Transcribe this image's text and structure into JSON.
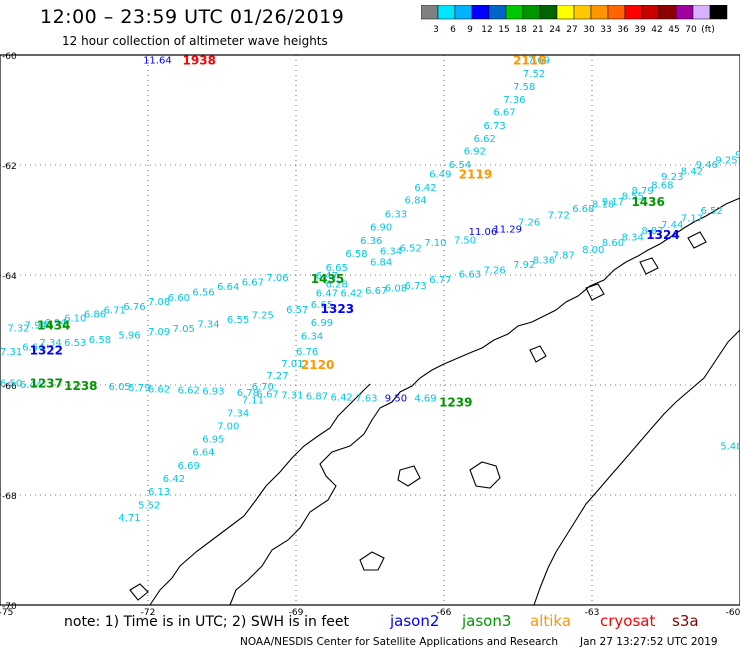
{
  "header": {
    "title": "12:00 – 23:59 UTC 01/26/2019",
    "subtitle": "12 hour collection of altimeter wave heights"
  },
  "scale": {
    "colors": [
      "#808080",
      "#00e5ff",
      "#00b2ff",
      "#0000ff",
      "#0064c8",
      "#00c800",
      "#009600",
      "#006400",
      "#ffff00",
      "#ffc800",
      "#ff9600",
      "#ff6400",
      "#ff0000",
      "#c80000",
      "#8b0000",
      "#a000a0",
      "#d8b2ff",
      "#000000"
    ],
    "labels": [
      "3",
      "6",
      "9",
      "12",
      "15",
      "18",
      "21",
      "24",
      "27",
      "30",
      "33",
      "36",
      "39",
      "42",
      "45",
      "70",
      "(ft)"
    ]
  },
  "axes": {
    "lat_labels": [
      "-60",
      "-62",
      "-64",
      "-66",
      "-68",
      "-70"
    ],
    "lon_labels": [
      "-75",
      "-72",
      "-69",
      "-66",
      "-63",
      "-60"
    ]
  },
  "legend": {
    "note": "note:  1) Time is in UTC; 2) SWH is in feet",
    "satellites": [
      {
        "name": "jason2",
        "color": "#0000ff"
      },
      {
        "name": "jason3",
        "color": "#009600"
      },
      {
        "name": "altika",
        "color": "#ff9600"
      },
      {
        "name": "cryosat",
        "color": "#ff0000"
      },
      {
        "name": "s3a",
        "color": "#8b0000"
      }
    ],
    "credit": "NOAA/NESDIS Center for Satellite Applications and Research",
    "timestamp": "Jan 27 13:27:52 UTC 2019"
  },
  "colors": {
    "cyan": "#00c8e6",
    "jason2": "#0000ff",
    "jason3": "#009600",
    "altika": "#ff9600",
    "cryosat": "#ff0000"
  },
  "time_labels": [
    {
      "text": "1938",
      "sat": "cryosat",
      "lon": -71.3,
      "lat": -60.08
    },
    {
      "text": "2118",
      "sat": "altika",
      "lon": -64.6,
      "lat": -60.08
    },
    {
      "text": "2119",
      "sat": "altika",
      "lon": -65.7,
      "lat": -62.15
    },
    {
      "text": "2120",
      "sat": "altika",
      "lon": -68.9,
      "lat": -65.62
    },
    {
      "text": "1436",
      "sat": "jason3",
      "lon": -62.2,
      "lat": -62.65
    },
    {
      "text": "1324",
      "sat": "jason2",
      "lon": -61.9,
      "lat": -63.25
    },
    {
      "text": "1435",
      "sat": "jason3",
      "lon": -68.7,
      "lat": -64.05
    },
    {
      "text": "1323",
      "sat": "jason2",
      "lon": -68.5,
      "lat": -64.6
    },
    {
      "text": "1434",
      "sat": "jason3",
      "lon": -74.25,
      "lat": -64.9
    },
    {
      "text": "1322",
      "sat": "jason2",
      "lon": -74.4,
      "lat": -65.35
    },
    {
      "text": "1237",
      "sat": "jason3",
      "lon": -74.4,
      "lat": -65.95
    },
    {
      "text": "1238",
      "sat": "jason3",
      "lon": -73.7,
      "lat": -66.0
    },
    {
      "text": "1239",
      "sat": "jason3",
      "lon": -66.1,
      "lat": -66.3
    }
  ],
  "swh_labels": [
    {
      "text": "11.64",
      "sat": "jason2",
      "lon": -72.1,
      "lat": -60.08
    },
    {
      "text": "7.69",
      "lon": -64.3,
      "lat": -60.08
    },
    {
      "text": "7.52",
      "lon": -64.4,
      "lat": -60.33
    },
    {
      "text": "7.58",
      "lon": -64.6,
      "lat": -60.56
    },
    {
      "text": "7.36",
      "lon": -64.8,
      "lat": -60.8
    },
    {
      "text": "6.67",
      "lon": -65.0,
      "lat": -61.03
    },
    {
      "text": "6.73",
      "lon": -65.2,
      "lat": -61.27
    },
    {
      "text": "6.62",
      "lon": -65.4,
      "lat": -61.51
    },
    {
      "text": "6.92",
      "lon": -65.6,
      "lat": -61.74
    },
    {
      "text": "6.54",
      "lon": -65.9,
      "lat": -61.98
    },
    {
      "text": "6.49",
      "lon": -66.3,
      "lat": -62.15
    },
    {
      "text": "6.42",
      "lon": -66.6,
      "lat": -62.4
    },
    {
      "text": "6.84",
      "lon": -66.8,
      "lat": -62.63
    },
    {
      "text": "6.33",
      "lon": -67.2,
      "lat": -62.88
    },
    {
      "text": "6.90",
      "lon": -67.5,
      "lat": -63.12
    },
    {
      "text": "6.36",
      "lon": -67.7,
      "lat": -63.36
    },
    {
      "text": "6.58",
      "lon": -68.0,
      "lat": -63.6
    },
    {
      "text": "6.34",
      "lon": -67.3,
      "lat": -63.55
    },
    {
      "text": "6.52",
      "lon": -66.9,
      "lat": -63.5
    },
    {
      "text": "7.10",
      "lon": -66.4,
      "lat": -63.4
    },
    {
      "text": "7.50",
      "lon": -65.8,
      "lat": -63.35
    },
    {
      "text": "11.06",
      "sat": "jason2",
      "lon": -65.5,
      "lat": -63.2
    },
    {
      "text": "11.29",
      "sat": "jason2",
      "lon": -65.0,
      "lat": -63.15
    },
    {
      "text": "7.26",
      "lon": -64.5,
      "lat": -63.03
    },
    {
      "text": "7.72",
      "lon": -63.9,
      "lat": -62.9
    },
    {
      "text": "6.68",
      "lon": -63.4,
      "lat": -62.78
    },
    {
      "text": "8.18",
      "lon": -63.0,
      "lat": -62.7
    },
    {
      "text": "9.17",
      "lon": -62.8,
      "lat": -62.65
    },
    {
      "text": "8.55",
      "lon": -62.4,
      "lat": -62.55
    },
    {
      "text": "8.79",
      "lon": -62.2,
      "lat": -62.45
    },
    {
      "text": "8.68",
      "lon": -61.8,
      "lat": -62.35
    },
    {
      "text": "9.23",
      "lon": -61.6,
      "lat": -62.2
    },
    {
      "text": "8.42",
      "lon": -61.2,
      "lat": -62.1
    },
    {
      "text": "9.46",
      "lon": -60.9,
      "lat": -61.98
    },
    {
      "text": "9.25",
      "lon": -60.5,
      "lat": -61.9
    },
    {
      "text": "9.5",
      "lon": -60.1,
      "lat": -61.8
    },
    {
      "text": "6.84",
      "lon": -67.5,
      "lat": -63.75
    },
    {
      "text": "6.65",
      "lon": -68.4,
      "lat": -63.85
    },
    {
      "text": "6.47",
      "lon": -68.6,
      "lat": -64.0
    },
    {
      "text": "7.06",
      "lon": -69.6,
      "lat": -64.04
    },
    {
      "text": "6.67",
      "lon": -70.1,
      "lat": -64.12
    },
    {
      "text": "6.64",
      "lon": -70.6,
      "lat": -64.2
    },
    {
      "text": "6.56",
      "lon": -71.1,
      "lat": -64.3
    },
    {
      "text": "6.60",
      "lon": -71.6,
      "lat": -64.4
    },
    {
      "text": "7.08",
      "lon": -72.0,
      "lat": -64.47
    },
    {
      "text": "6.76",
      "lon": -72.5,
      "lat": -64.56
    },
    {
      "text": "6.71",
      "lon": -72.9,
      "lat": -64.63
    },
    {
      "text": "6.86",
      "lon": -73.3,
      "lat": -64.7
    },
    {
      "text": "6.10",
      "lon": -73.7,
      "lat": -64.77
    },
    {
      "text": "6.94",
      "lon": -74.1,
      "lat": -64.85
    },
    {
      "text": "7.94",
      "lon": -74.5,
      "lat": -64.9
    },
    {
      "text": "7.32",
      "lon": -74.85,
      "lat": -64.95
    },
    {
      "text": "6.28",
      "lon": -68.4,
      "lat": -64.15
    },
    {
      "text": "6.47",
      "lon": -68.6,
      "lat": -64.32
    },
    {
      "text": "6.42",
      "lon": -68.1,
      "lat": -64.32
    },
    {
      "text": "6.67",
      "lon": -67.6,
      "lat": -64.27
    },
    {
      "text": "6.08",
      "lon": -67.2,
      "lat": -64.23
    },
    {
      "text": "6.73",
      "lon": -66.8,
      "lat": -64.18
    },
    {
      "text": "6.77",
      "lon": -66.3,
      "lat": -64.07
    },
    {
      "text": "6.63",
      "lon": -65.7,
      "lat": -63.97
    },
    {
      "text": "7.26",
      "lon": -65.2,
      "lat": -63.9
    },
    {
      "text": "7.92",
      "lon": -64.6,
      "lat": -63.8
    },
    {
      "text": "8.36",
      "lon": -64.2,
      "lat": -63.72
    },
    {
      "text": "7.87",
      "lon": -63.8,
      "lat": -63.63
    },
    {
      "text": "8.00",
      "lon": -63.2,
      "lat": -63.53
    },
    {
      "text": "8.60",
      "lon": -62.8,
      "lat": -63.4
    },
    {
      "text": "8.34",
      "lon": -62.4,
      "lat": -63.3
    },
    {
      "text": "8.87",
      "lon": -62.0,
      "lat": -63.18
    },
    {
      "text": "7.44",
      "lon": -61.6,
      "lat": -63.07
    },
    {
      "text": "7.17",
      "lon": -61.2,
      "lat": -62.95
    },
    {
      "text": "6.52",
      "lon": -60.8,
      "lat": -62.82
    },
    {
      "text": "6.65",
      "lon": -68.7,
      "lat": -64.53
    },
    {
      "text": "6.57",
      "lon": -69.2,
      "lat": -64.62
    },
    {
      "text": "7.25",
      "lon": -69.9,
      "lat": -64.72
    },
    {
      "text": "6.55",
      "lon": -70.4,
      "lat": -64.8
    },
    {
      "text": "7.34",
      "lon": -71.0,
      "lat": -64.88
    },
    {
      "text": "7.05",
      "lon": -71.5,
      "lat": -64.96
    },
    {
      "text": "7.09",
      "lon": -72.0,
      "lat": -65.02
    },
    {
      "text": "5.96",
      "lon": -72.6,
      "lat": -65.08
    },
    {
      "text": "6.58",
      "lon": -73.2,
      "lat": -65.16
    },
    {
      "text": "6.53",
      "lon": -73.7,
      "lat": -65.22
    },
    {
      "text": "7.34",
      "lon": -74.2,
      "lat": -65.22
    },
    {
      "text": "6.64",
      "lon": -74.55,
      "lat": -65.3
    },
    {
      "text": "7.31",
      "lon": -75.0,
      "lat": -65.38
    },
    {
      "text": "6.99",
      "lon": -68.7,
      "lat": -64.85
    },
    {
      "text": "6.34",
      "lon": -68.9,
      "lat": -65.1
    },
    {
      "text": "6.76",
      "lon": -69.0,
      "lat": -65.38
    },
    {
      "text": "7.01",
      "lon": -69.3,
      "lat": -65.6
    },
    {
      "text": "7.27",
      "lon": -69.6,
      "lat": -65.82
    },
    {
      "text": "6.70",
      "lon": -69.9,
      "lat": -66.02
    },
    {
      "text": "7.11",
      "lon": -70.1,
      "lat": -66.26
    },
    {
      "text": "7.34",
      "lon": -70.4,
      "lat": -66.5
    },
    {
      "text": "7.00",
      "lon": -70.6,
      "lat": -66.74
    },
    {
      "text": "6.95",
      "lon": -70.9,
      "lat": -66.97
    },
    {
      "text": "6.64",
      "lon": -71.1,
      "lat": -67.21
    },
    {
      "text": "6.69",
      "lon": -71.4,
      "lat": -67.45
    },
    {
      "text": "6.42",
      "lon": -71.7,
      "lat": -67.69
    },
    {
      "text": "6.13",
      "lon": -72.0,
      "lat": -67.93
    },
    {
      "text": "5.52",
      "lon": -72.2,
      "lat": -68.17
    },
    {
      "text": "4.71",
      "lon": -72.6,
      "lat": -68.4
    },
    {
      "text": "6.50",
      "lon": -75.0,
      "lat": -65.95
    },
    {
      "text": "6.44",
      "lon": -74.6,
      "lat": -65.98
    },
    {
      "text": "6.05",
      "lon": -72.8,
      "lat": -66.02
    },
    {
      "text": "5.79",
      "lon": -72.4,
      "lat": -66.04
    },
    {
      "text": "6.62",
      "lon": -72.0,
      "lat": -66.06
    },
    {
      "text": "6.62",
      "lon": -71.4,
      "lat": -66.08
    },
    {
      "text": "6.93",
      "lon": -70.9,
      "lat": -66.1
    },
    {
      "text": "6.78",
      "lon": -70.2,
      "lat": -66.13
    },
    {
      "text": "6.67",
      "lon": -69.8,
      "lat": -66.15
    },
    {
      "text": "7.31",
      "lon": -69.3,
      "lat": -66.17
    },
    {
      "text": "6.87",
      "lon": -68.8,
      "lat": -66.19
    },
    {
      "text": "6.42",
      "lon": -68.3,
      "lat": -66.21
    },
    {
      "text": "7.63",
      "lon": -67.8,
      "lat": -66.23
    },
    {
      "text": "9.50",
      "sat": "jason2",
      "lon": -67.2,
      "lat": -66.23
    },
    {
      "text": "4.69",
      "lon": -66.6,
      "lat": -66.23
    },
    {
      "text": "5.48",
      "lon": -60.4,
      "lat": -67.1
    }
  ]
}
